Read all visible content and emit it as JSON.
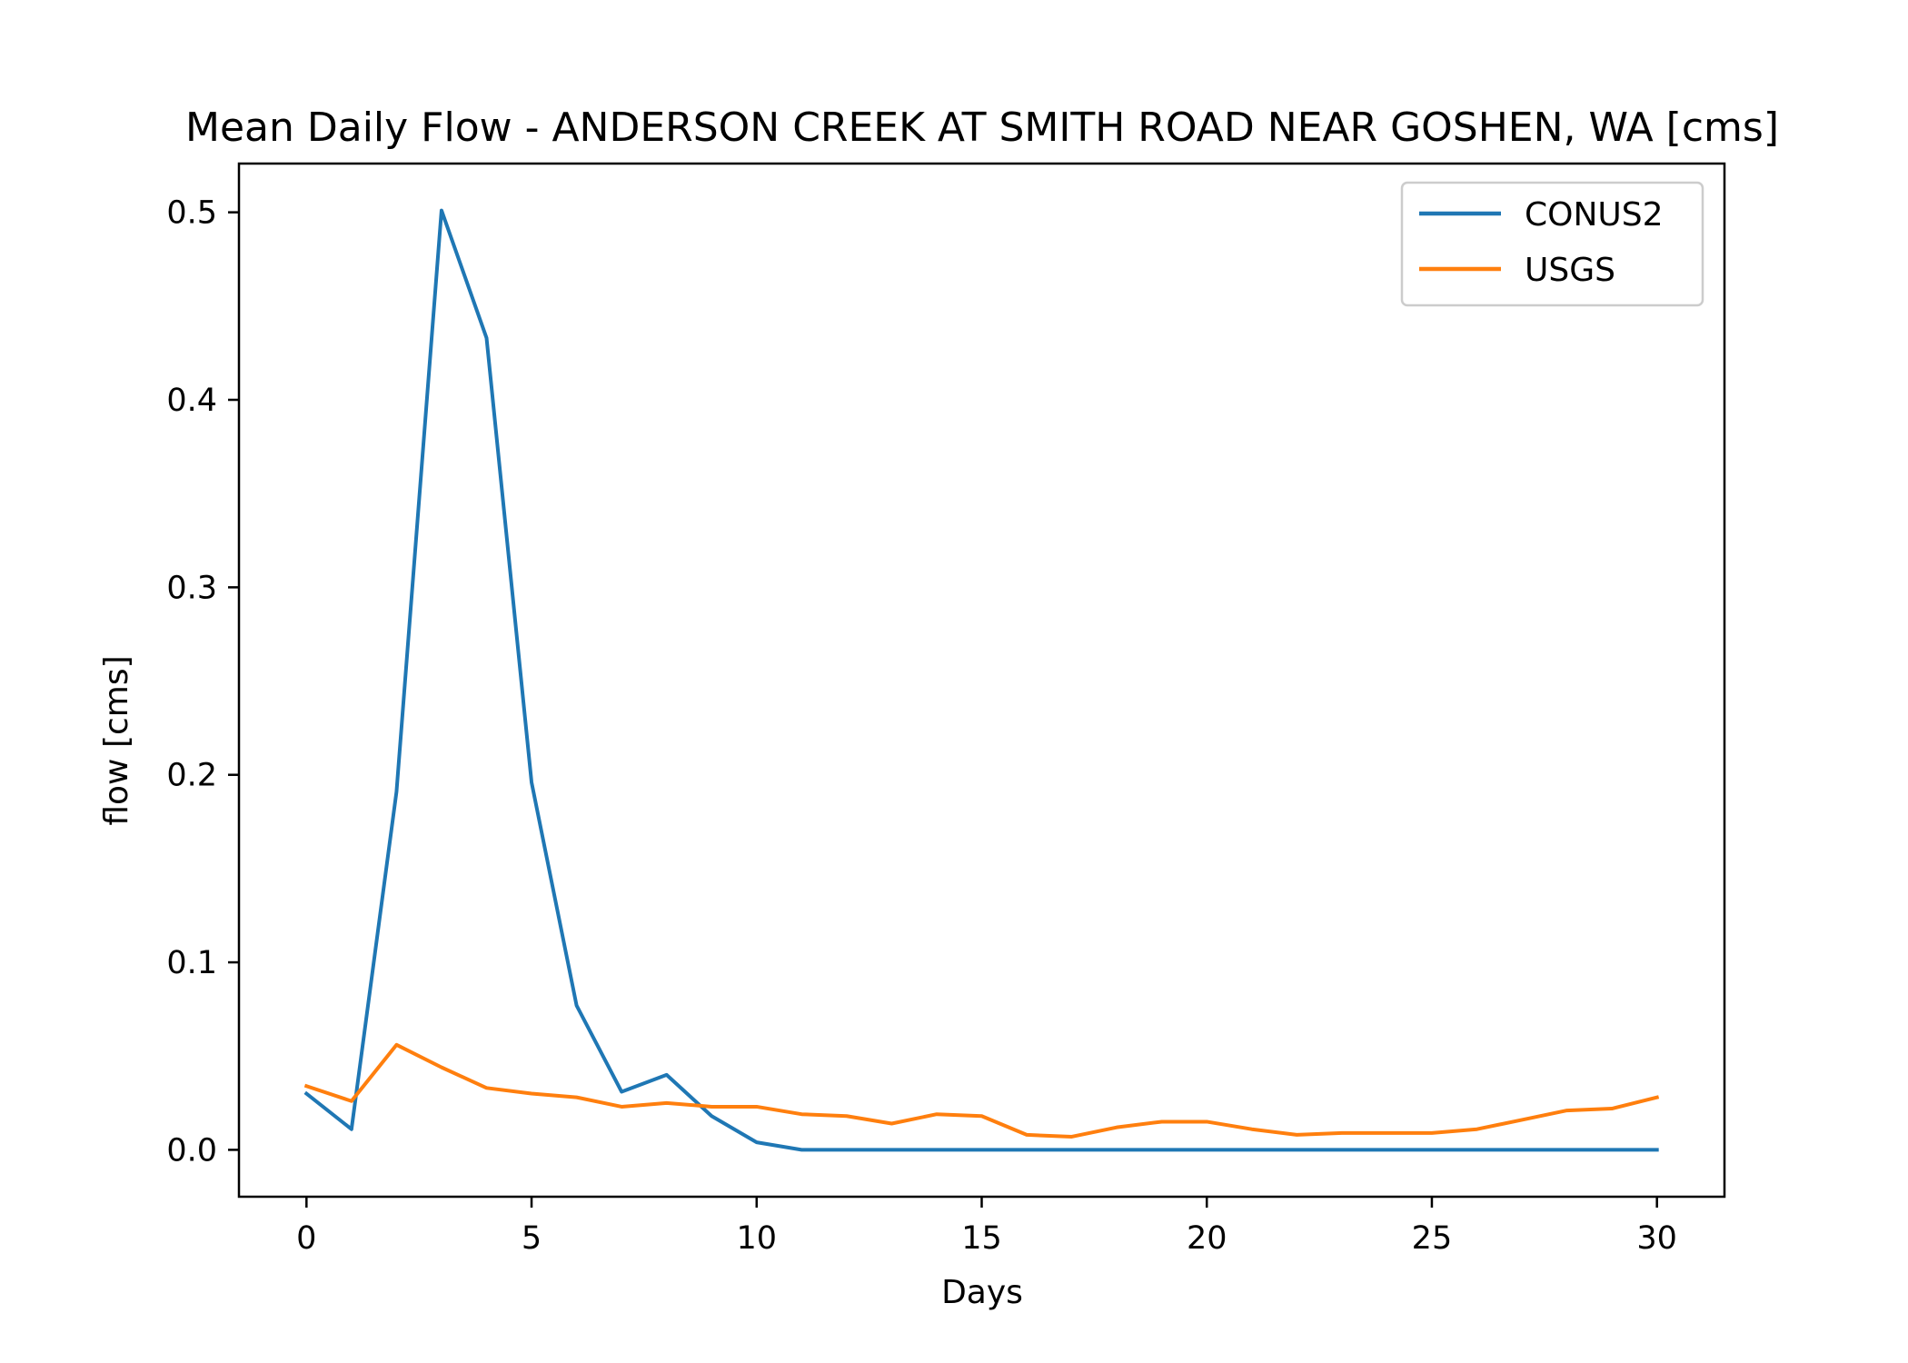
{
  "chart_data": {
    "type": "line",
    "title": "Mean Daily Flow - ANDERSON CREEK AT SMITH ROAD NEAR GOSHEN, WA [cms]",
    "xlabel": "Days",
    "ylabel": "flow [cms]",
    "xlim": [
      -1.5,
      31.5
    ],
    "ylim": [
      -0.025,
      0.526
    ],
    "xticks": [
      0,
      5,
      10,
      15,
      20,
      25,
      30
    ],
    "xtick_labels": [
      "0",
      "5",
      "10",
      "15",
      "20",
      "25",
      "30"
    ],
    "yticks": [
      0.0,
      0.1,
      0.2,
      0.3,
      0.4,
      0.5
    ],
    "ytick_labels": [
      "0.0",
      "0.1",
      "0.2",
      "0.3",
      "0.4",
      "0.5"
    ],
    "grid": false,
    "legend_position": "top-right",
    "x": [
      0,
      1,
      2,
      3,
      4,
      5,
      6,
      7,
      8,
      9,
      10,
      11,
      12,
      13,
      14,
      15,
      16,
      17,
      18,
      19,
      20,
      21,
      22,
      23,
      24,
      25,
      26,
      27,
      28,
      29,
      30
    ],
    "series": [
      {
        "name": "CONUS2",
        "color": "#1f77b4",
        "values": [
          0.03,
          0.011,
          0.191,
          0.501,
          0.433,
          0.196,
          0.077,
          0.031,
          0.04,
          0.018,
          0.004,
          0.0,
          0.0,
          0.0,
          0.0,
          0.0,
          0.0,
          0.0,
          0.0,
          0.0,
          0.0,
          0.0,
          0.0,
          0.0,
          0.0,
          0.0,
          0.0,
          0.0,
          0.0,
          0.0,
          0.0
        ]
      },
      {
        "name": "USGS",
        "color": "#ff7f0e",
        "values": [
          0.034,
          0.026,
          0.056,
          0.044,
          0.033,
          0.03,
          0.028,
          0.023,
          0.025,
          0.023,
          0.023,
          0.019,
          0.018,
          0.014,
          0.019,
          0.018,
          0.008,
          0.007,
          0.012,
          0.015,
          0.015,
          0.011,
          0.008,
          0.009,
          0.009,
          0.009,
          0.011,
          0.016,
          0.021,
          0.022,
          0.028
        ]
      }
    ]
  }
}
